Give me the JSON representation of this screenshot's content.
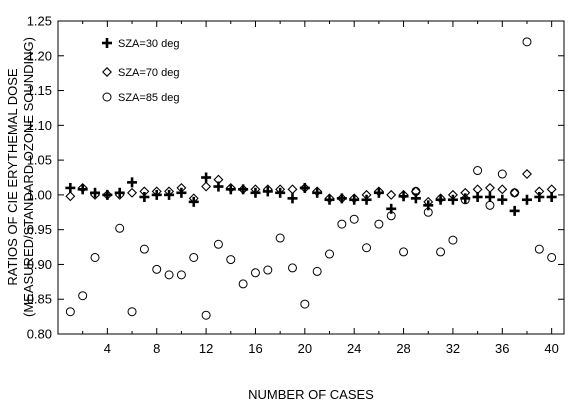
{
  "chart_data": {
    "type": "scatter",
    "title": "",
    "xlabel": "NUMBER OF CASES",
    "ylabel_lines": [
      "RATIOS OF CIE ERYTHEMAL DOSE",
      "(MEASURED/STANDARD OZONE SOUNDING)"
    ],
    "xlim": [
      0,
      41
    ],
    "ylim": [
      0.8,
      1.25
    ],
    "x_ticks": [
      4,
      8,
      12,
      16,
      20,
      24,
      28,
      32,
      36,
      40
    ],
    "x_tick_labels": [
      "4",
      "8",
      "12",
      "16",
      "20",
      "24",
      "28",
      "32",
      "36",
      "40"
    ],
    "y_ticks": [
      0.8,
      0.85,
      0.9,
      0.95,
      1.0,
      1.05,
      1.1,
      1.15,
      1.2,
      1.25
    ],
    "y_tick_labels": [
      "0.80",
      "0.85",
      "0.90",
      "0.95",
      "1.00",
      "1.05",
      "1.10",
      "1.15",
      "1.20",
      "1.25"
    ],
    "grid": false,
    "legend_position": "top-left",
    "series": [
      {
        "name": "SZA=30 deg",
        "marker": "plus",
        "x": [
          1,
          2,
          3,
          4,
          5,
          6,
          7,
          8,
          9,
          10,
          11,
          12,
          13,
          14,
          15,
          16,
          17,
          18,
          19,
          20,
          21,
          22,
          23,
          24,
          25,
          26,
          27,
          28,
          29,
          30,
          31,
          32,
          33,
          34,
          35,
          36,
          37,
          38,
          39,
          40
        ],
        "values": [
          1.01,
          1.008,
          1.003,
          1.0,
          1.003,
          1.018,
          0.997,
          1.0,
          1.0,
          1.003,
          0.99,
          1.025,
          1.012,
          1.008,
          1.008,
          1.003,
          1.005,
          1.003,
          0.995,
          1.01,
          1.003,
          0.993,
          0.995,
          0.993,
          0.993,
          1.003,
          0.98,
          0.998,
          0.995,
          0.985,
          0.993,
          0.993,
          0.995,
          0.997,
          0.997,
          0.993,
          0.977,
          0.993,
          0.997,
          0.997
        ]
      },
      {
        "name": "SZA=70 deg",
        "marker": "diamond",
        "x": [
          1,
          2,
          3,
          4,
          5,
          6,
          7,
          8,
          9,
          10,
          11,
          12,
          13,
          14,
          15,
          16,
          17,
          18,
          19,
          20,
          21,
          22,
          23,
          24,
          25,
          26,
          27,
          28,
          29,
          30,
          31,
          32,
          33,
          34,
          35,
          36,
          37,
          38,
          39,
          40
        ],
        "values": [
          0.998,
          1.01,
          1.0,
          1.0,
          1.0,
          1.003,
          1.005,
          1.005,
          1.005,
          1.01,
          0.995,
          1.012,
          1.022,
          1.01,
          1.008,
          1.008,
          1.008,
          1.008,
          1.008,
          1.01,
          1.005,
          0.995,
          0.995,
          0.995,
          1.0,
          1.005,
          1.0,
          1.0,
          1.005,
          0.99,
          0.995,
          1.0,
          1.003,
          1.008,
          1.01,
          1.008,
          1.003,
          1.03,
          1.005,
          1.008
        ]
      },
      {
        "name": "SZA=85 deg",
        "marker": "circle",
        "x": [
          1,
          2,
          3,
          5,
          6,
          7,
          8,
          9,
          10,
          11,
          12,
          13,
          14,
          15,
          16,
          17,
          18,
          19,
          20,
          21,
          22,
          23,
          24,
          25,
          26,
          27,
          28,
          29,
          30,
          31,
          32,
          33,
          34,
          35,
          36,
          37,
          38,
          39,
          40
        ],
        "values": [
          0.832,
          0.855,
          0.91,
          0.952,
          0.832,
          0.922,
          0.893,
          0.885,
          0.885,
          0.91,
          0.827,
          0.929,
          0.907,
          0.872,
          0.888,
          0.892,
          0.938,
          0.895,
          0.843,
          0.89,
          0.915,
          0.958,
          0.965,
          0.924,
          0.958,
          0.97,
          0.918,
          1.005,
          0.975,
          0.918,
          0.935,
          0.993,
          1.035,
          0.985,
          1.03,
          1.003,
          1.22,
          0.922,
          0.91
        ]
      }
    ]
  }
}
